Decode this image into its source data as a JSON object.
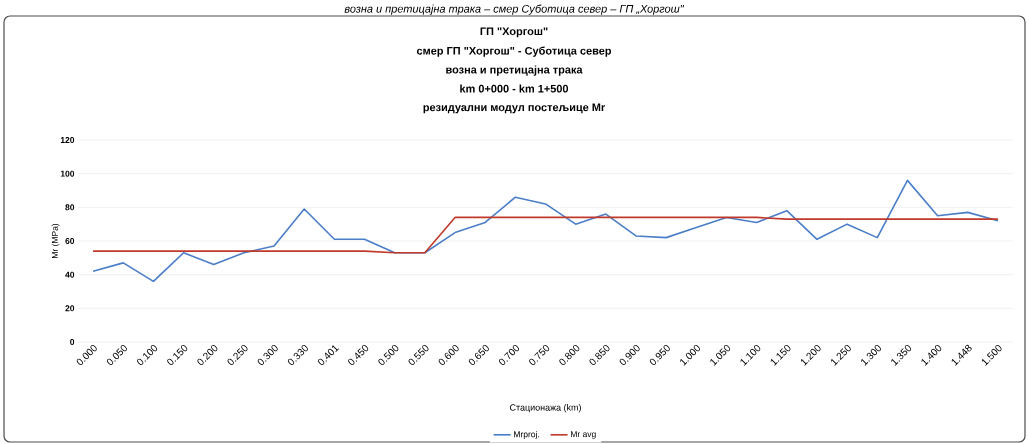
{
  "chart_data": {
    "type": "line",
    "title": "ГП \"Хоргош\"",
    "subtitle": "смер ГП \"Хоргош\" - Суботица север",
    "annotations": [
      "возна и претицајна трака – смер Суботица север – ГП „Хоргош\"",
      "возна и претицајна трака",
      "km 0+000 - km 1+500",
      "резидуални модул постељице Mr"
    ],
    "xlabel": "Стационажа (km)",
    "ylabel": "Mr (MPa)",
    "categories": [
      "0.000",
      "0.050",
      "0.100",
      "0.150",
      "0.200",
      "0.250",
      "0.300",
      "0.330",
      "0.401",
      "0.450",
      "0.500",
      "0.550",
      "0.600",
      "0.650",
      "0.700",
      "0.750",
      "0.800",
      "0.850",
      "0.900",
      "0.950",
      "1.000",
      "1.050",
      "1.100",
      "1.150",
      "1.200",
      "1.250",
      "1.300",
      "1.350",
      "1.400",
      "1.448",
      "1.500"
    ],
    "series": [
      {
        "name": "Mrproj.",
        "color": "#4a7ec8",
        "values": [
          42,
          47,
          36,
          53,
          46,
          53,
          57,
          79,
          61,
          61,
          53,
          53,
          65,
          71,
          86,
          82,
          70,
          76,
          63,
          62,
          68,
          74,
          71,
          78,
          61,
          70,
          62,
          96,
          75,
          77,
          72
        ]
      },
      {
        "name": "Mr avg",
        "color": "#c0392b",
        "values": [
          54,
          54,
          54,
          54,
          54,
          54,
          54,
          54,
          54,
          54,
          53,
          53,
          74,
          74,
          74,
          74,
          74,
          74,
          74,
          74,
          74,
          74,
          74,
          73,
          73,
          73,
          73,
          73,
          73,
          73,
          73
        ]
      }
    ],
    "ylim": [
      0,
      120
    ],
    "yticks": [
      0,
      20,
      40,
      60,
      80,
      100,
      120
    ],
    "grid": "y",
    "legend": "bottom",
    "marker": "none",
    "line_style": "solid"
  }
}
